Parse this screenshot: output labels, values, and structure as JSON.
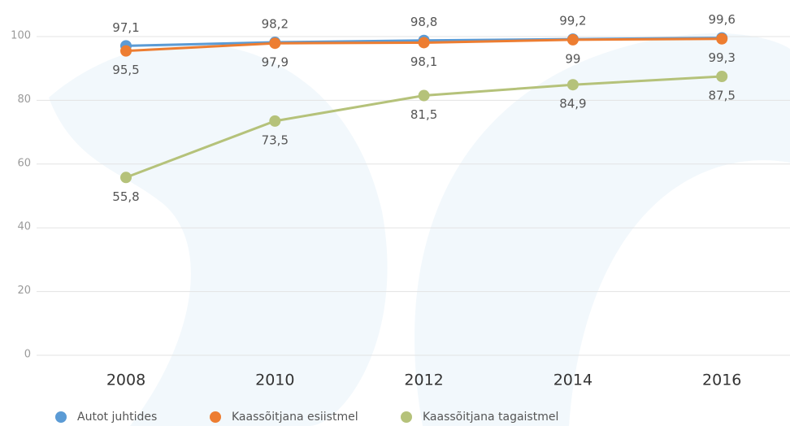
{
  "chart_data": {
    "type": "line",
    "categories": [
      "2008",
      "2010",
      "2012",
      "2014",
      "2016"
    ],
    "series": [
      {
        "name": "Autot juhtides",
        "color": "#5b9bd5",
        "values": [
          97.1,
          98.2,
          98.8,
          99.2,
          99.6
        ],
        "value_labels": [
          "97,1",
          "98,2",
          "98,8",
          "99,2",
          "99,6"
        ]
      },
      {
        "name": "Kaassõitjana esiistmel",
        "color": "#ed7d31",
        "values": [
          95.5,
          97.9,
          98.1,
          99,
          99.3
        ],
        "value_labels": [
          "95,5",
          "97,9",
          "98,1",
          "99",
          "99,3"
        ]
      },
      {
        "name": "Kaassõitjana tagaistmel",
        "color": "#b5c27a",
        "values": [
          55.8,
          73.5,
          81.5,
          84.9,
          87.5
        ],
        "value_labels": [
          "55,8",
          "73,5",
          "81,5",
          "84,9",
          "87,5"
        ]
      }
    ],
    "ylim": [
      0,
      100
    ],
    "yticks": [
      0,
      20,
      40,
      60,
      80,
      100
    ],
    "grid": true
  }
}
